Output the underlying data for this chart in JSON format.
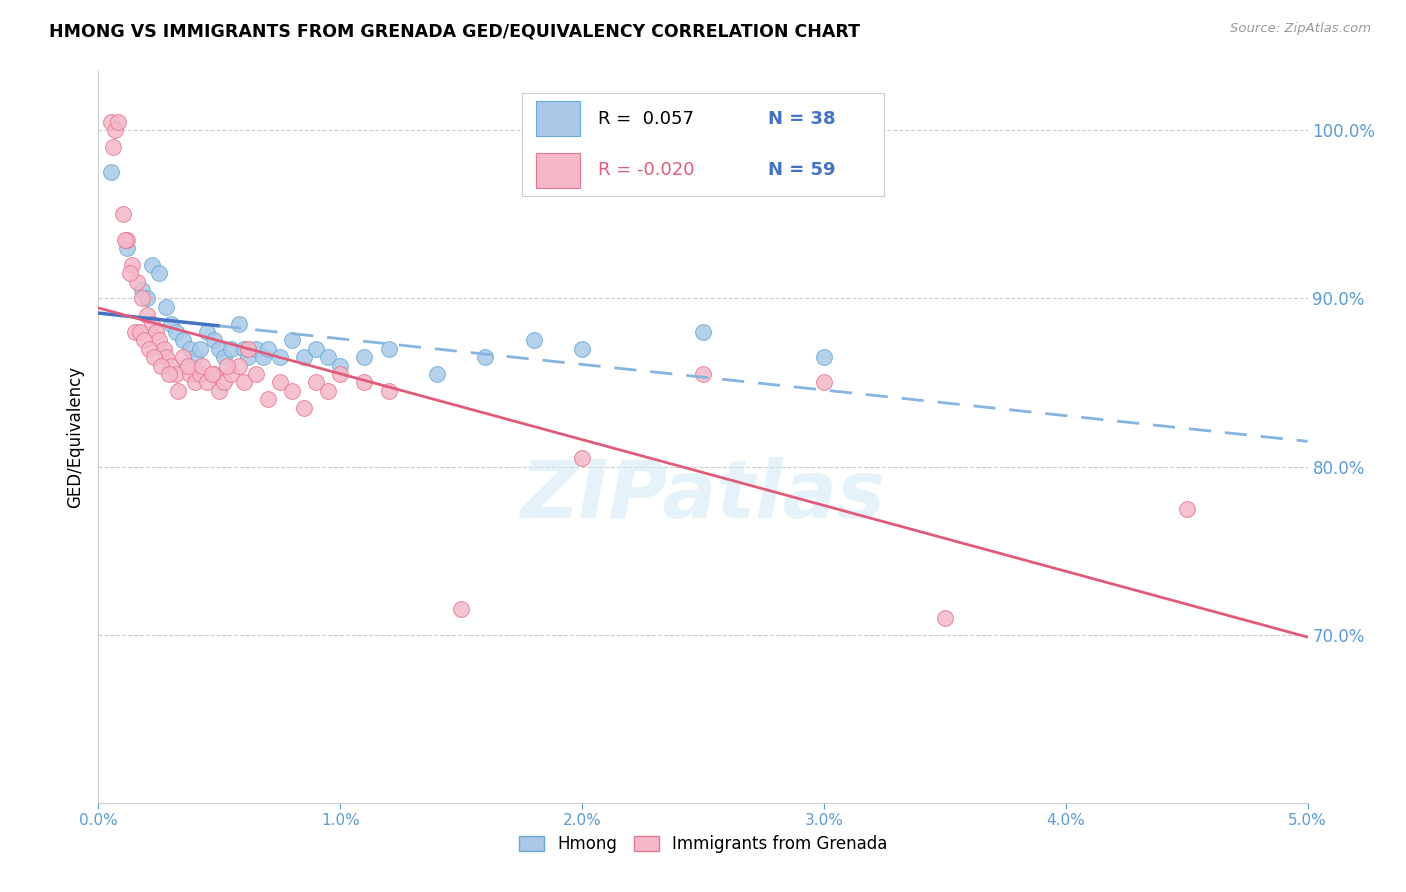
{
  "title": "HMONG VS IMMIGRANTS FROM GRENADA GED/EQUIVALENCY CORRELATION CHART",
  "source": "Source: ZipAtlas.com",
  "ylabel": "GED/Equivalency",
  "legend_label1": "Hmong",
  "legend_label2": "Immigrants from Grenada",
  "R1": " 0.057",
  "N1": "38",
  "R2": "-0.020",
  "N2": "59",
  "color_blue": "#aac9e8",
  "color_pink": "#f4b8c8",
  "color_blue_edge": "#6aaad4",
  "color_pink_edge": "#e8758f",
  "color_trend_blue": "#4472c4",
  "color_trend_pink": "#e05c7a",
  "color_trend_blue_dash": "#85b5e0",
  "watermark": "ZIPatlas",
  "xlim": [
    0.0,
    5.0
  ],
  "ylim": [
    60.0,
    103.5
  ],
  "yticks": [
    70.0,
    80.0,
    90.0,
    100.0
  ],
  "xticks": [
    0.0,
    1.0,
    2.0,
    3.0,
    4.0,
    5.0
  ],
  "hmong_x": [
    0.05,
    0.12,
    0.18,
    0.2,
    0.22,
    0.25,
    0.28,
    0.3,
    0.32,
    0.35,
    0.38,
    0.4,
    0.42,
    0.45,
    0.48,
    0.5,
    0.52,
    0.55,
    0.58,
    0.6,
    0.62,
    0.65,
    0.68,
    0.7,
    0.75,
    0.8,
    0.85,
    0.9,
    0.95,
    1.0,
    1.1,
    1.2,
    1.4,
    1.6,
    1.8,
    2.0,
    2.5,
    3.0
  ],
  "hmong_y": [
    97.5,
    93.0,
    90.5,
    90.0,
    92.0,
    91.5,
    89.5,
    88.5,
    88.0,
    87.5,
    87.0,
    86.5,
    87.0,
    88.0,
    87.5,
    87.0,
    86.5,
    87.0,
    88.5,
    87.0,
    86.5,
    87.0,
    86.5,
    87.0,
    86.5,
    87.5,
    86.5,
    87.0,
    86.5,
    86.0,
    86.5,
    87.0,
    85.5,
    86.5,
    87.5,
    87.0,
    88.0,
    86.5
  ],
  "grenada_x": [
    0.05,
    0.07,
    0.1,
    0.12,
    0.14,
    0.16,
    0.18,
    0.2,
    0.22,
    0.24,
    0.25,
    0.27,
    0.28,
    0.3,
    0.32,
    0.35,
    0.38,
    0.4,
    0.42,
    0.45,
    0.48,
    0.5,
    0.52,
    0.55,
    0.58,
    0.6,
    0.65,
    0.7,
    0.75,
    0.8,
    0.85,
    0.9,
    0.95,
    1.0,
    1.1,
    1.2,
    1.5,
    2.0,
    2.5,
    3.0,
    3.5,
    4.5,
    0.06,
    0.08,
    0.11,
    0.13,
    0.15,
    0.17,
    0.19,
    0.21,
    0.23,
    0.26,
    0.29,
    0.33,
    0.37,
    0.43,
    0.47,
    0.53,
    0.62
  ],
  "grenada_y": [
    100.5,
    100.0,
    95.0,
    93.5,
    92.0,
    91.0,
    90.0,
    89.0,
    88.5,
    88.0,
    87.5,
    87.0,
    86.5,
    86.0,
    85.5,
    86.5,
    85.5,
    85.0,
    85.5,
    85.0,
    85.5,
    84.5,
    85.0,
    85.5,
    86.0,
    85.0,
    85.5,
    84.0,
    85.0,
    84.5,
    83.5,
    85.0,
    84.5,
    85.5,
    85.0,
    84.5,
    71.5,
    80.5,
    85.5,
    85.0,
    71.0,
    77.5,
    99.0,
    100.5,
    93.5,
    91.5,
    88.0,
    88.0,
    87.5,
    87.0,
    86.5,
    86.0,
    85.5,
    84.5,
    86.0,
    86.0,
    85.5,
    86.0,
    87.0
  ]
}
